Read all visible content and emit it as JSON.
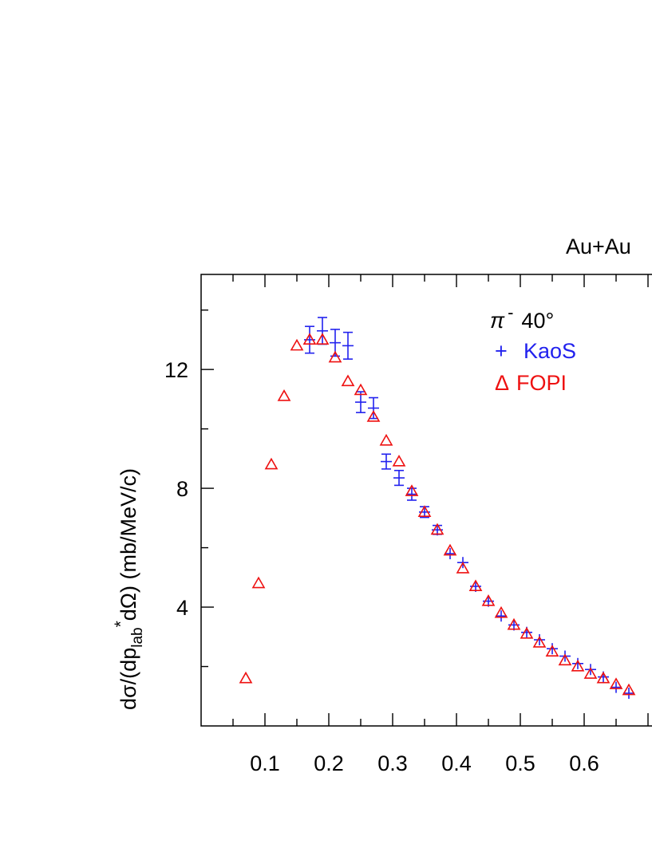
{
  "chart_data": {
    "type": "scatter",
    "title": "Au+Au",
    "ylabel_main": "dσ/(dp",
    "ylabel_sub": "lab",
    "ylabel_sup": "*",
    "ylabel_tail": "dΩ)  (mb/MeV/c)",
    "xlim": [
      0.0,
      0.7
    ],
    "ylim": [
      0,
      15.2
    ],
    "x_ticks": [
      0.1,
      0.2,
      0.3,
      0.4,
      0.5,
      0.6
    ],
    "x_tick_labels": [
      "0.1",
      "0.2",
      "0.3",
      "0.4",
      "0.5",
      "0.6"
    ],
    "y_ticks": [
      4,
      8,
      12
    ],
    "y_tick_labels": [
      "4",
      "8",
      "12"
    ],
    "annotation": {
      "particle": "π",
      "charge": "-",
      "angle": "40°"
    },
    "legend": [
      {
        "symbol": "+",
        "label": "KaoS",
        "color": "#2222ee"
      },
      {
        "symbol": "Δ",
        "label": "FOPI",
        "color": "#ee1111"
      }
    ],
    "series": [
      {
        "name": "KaoS",
        "marker": "cross",
        "color": "#2222ee",
        "x": [
          0.17,
          0.19,
          0.21,
          0.23,
          0.25,
          0.27,
          0.29,
          0.31,
          0.33,
          0.35,
          0.37,
          0.39,
          0.41,
          0.43,
          0.45,
          0.47,
          0.49,
          0.51,
          0.53,
          0.55,
          0.57,
          0.59,
          0.61,
          0.63,
          0.65,
          0.67
        ],
        "y": [
          13.0,
          13.3,
          12.9,
          12.8,
          10.9,
          10.7,
          8.9,
          8.35,
          7.8,
          7.2,
          6.6,
          5.8,
          5.5,
          4.7,
          4.2,
          3.7,
          3.4,
          3.15,
          2.9,
          2.6,
          2.35,
          2.1,
          1.9,
          1.65,
          1.3,
          1.1
        ],
        "err": [
          0.45,
          0.45,
          0.45,
          0.45,
          0.35,
          0.35,
          0.25,
          0.25,
          0.2,
          0.18,
          0.15,
          0.1,
          0.1,
          0.08,
          0.08,
          0.07,
          0.06,
          0.06,
          0.05,
          0.05,
          0.05,
          0.05,
          0.04,
          0.04,
          0.04,
          0.04
        ]
      },
      {
        "name": "FOPI",
        "marker": "triangle",
        "color": "#ee1111",
        "x": [
          0.07,
          0.09,
          0.11,
          0.13,
          0.15,
          0.17,
          0.19,
          0.21,
          0.23,
          0.25,
          0.27,
          0.29,
          0.31,
          0.33,
          0.35,
          0.37,
          0.39,
          0.41,
          0.43,
          0.45,
          0.47,
          0.49,
          0.51,
          0.53,
          0.55,
          0.57,
          0.59,
          0.61,
          0.63,
          0.65,
          0.67
        ],
        "y": [
          1.6,
          4.8,
          8.8,
          11.1,
          12.8,
          13.0,
          13.0,
          12.4,
          11.6,
          11.3,
          10.4,
          9.6,
          8.9,
          7.9,
          7.2,
          6.6,
          5.9,
          5.3,
          4.7,
          4.2,
          3.8,
          3.4,
          3.1,
          2.8,
          2.5,
          2.2,
          2.0,
          1.75,
          1.6,
          1.4,
          1.2
        ]
      }
    ]
  }
}
